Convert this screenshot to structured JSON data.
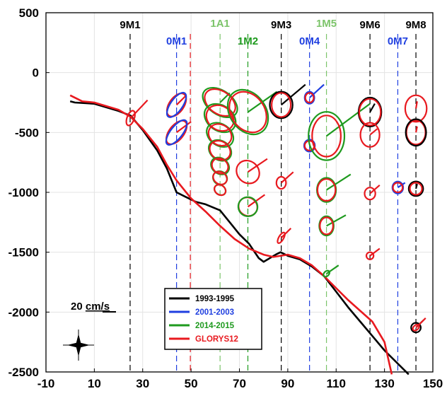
{
  "chart_data": {
    "type": "line",
    "title": "",
    "xlabel": "",
    "ylabel": "",
    "xlim": [
      -10,
      150
    ],
    "ylim": [
      -2500,
      500
    ],
    "xticks": [
      -10,
      10,
      30,
      50,
      70,
      90,
      110,
      130,
      150
    ],
    "yticks": [
      500,
      0,
      -500,
      -1000,
      -1500,
      -2000,
      -2500
    ],
    "grid": true,
    "legend": {
      "position": "bottom-center",
      "entries": [
        "1993-1995",
        "2001-2003",
        "2014-2015",
        "GLORYS12"
      ]
    },
    "colors": {
      "1993-1995": "#000000",
      "2001-2003": "#1f3fe0",
      "2014-2015": "#1e9a1e",
      "GLORYS12": "#e8191f",
      "1A1": "#7cc46a",
      "1M5": "#7cc46a",
      "1M2": "#1e9a1e",
      "dashed-red": "#e8191f"
    },
    "series": [
      {
        "name": "1993-1995",
        "x": [
          0,
          2,
          10,
          20,
          25,
          30,
          36,
          40,
          44,
          48,
          52,
          56,
          62,
          66,
          70,
          74,
          78,
          80,
          85,
          87,
          90,
          95,
          100,
          105,
          110,
          115,
          120,
          125,
          130,
          135,
          140
        ],
        "y": [
          -240,
          -250,
          -260,
          -320,
          -360,
          -480,
          -650,
          -800,
          -1000,
          -1040,
          -1080,
          -1100,
          -1150,
          -1250,
          -1350,
          -1430,
          -1550,
          -1580,
          -1520,
          -1500,
          -1530,
          -1560,
          -1620,
          -1700,
          -1830,
          -1960,
          -2080,
          -2200,
          -2320,
          -2420,
          -2520
        ]
      },
      {
        "name": "GLORYS12",
        "x": [
          0,
          5,
          10,
          20,
          25,
          30,
          36,
          40,
          44,
          50,
          56,
          62,
          68,
          74,
          80,
          84,
          90,
          95,
          100,
          105,
          110,
          115,
          120,
          125,
          130,
          133
        ],
        "y": [
          -190,
          -240,
          -250,
          -310,
          -370,
          -470,
          -620,
          -770,
          -900,
          -1050,
          -1160,
          -1280,
          -1390,
          -1470,
          -1520,
          -1540,
          -1520,
          -1550,
          -1610,
          -1700,
          -1800,
          -1900,
          -1990,
          -2080,
          -2250,
          -2520
        ]
      }
    ],
    "mooring_lines": [
      {
        "name": "9M1",
        "x": 24.8,
        "color": "#000000"
      },
      {
        "name": "0M1",
        "x": 44,
        "color": "#1f3fe0"
      },
      {
        "name": "",
        "x": 49.7,
        "color": "#e8191f"
      },
      {
        "name": "1A1",
        "x": 62,
        "color": "#7cc46a"
      },
      {
        "name": "1M2",
        "x": 73.5,
        "color": "#1e9a1e"
      },
      {
        "name": "9M3",
        "x": 87.3,
        "color": "#000000"
      },
      {
        "name": "0M4",
        "x": 99,
        "color": "#1f3fe0"
      },
      {
        "name": "1M5",
        "x": 106,
        "color": "#7cc46a"
      },
      {
        "name": "9M6",
        "x": 124,
        "color": "#000000"
      },
      {
        "name": "0M7",
        "x": 135.5,
        "color": "#1f3fe0"
      },
      {
        "name": "9M8",
        "x": 143,
        "color": "#000000"
      }
    ],
    "current_ellipses": [
      {
        "x": 44,
        "y": -270,
        "rx": 3,
        "ry": 110,
        "angle": 35,
        "color": "#e8191f",
        "stick": [
          4,
          80
        ]
      },
      {
        "x": 44,
        "y": -270,
        "rx": 2.5,
        "ry": 120,
        "angle": 35,
        "color": "#1f3fe0"
      },
      {
        "x": 44,
        "y": -500,
        "rx": 3,
        "ry": 115,
        "angle": 38,
        "color": "#e8191f",
        "stick": [
          6,
          90
        ]
      },
      {
        "x": 44,
        "y": -500,
        "rx": 2.5,
        "ry": 125,
        "angle": 38,
        "color": "#1f3fe0"
      },
      {
        "x": 25,
        "y": -380,
        "rx": 1.5,
        "ry": 65,
        "angle": 20,
        "color": "#e8191f",
        "stick": [
          7,
          150
        ]
      },
      {
        "x": 62,
        "y": -250,
        "rx": 8,
        "ry": 100,
        "angle": 35,
        "color": "#1e9a1e",
        "stick": [
          4,
          80
        ]
      },
      {
        "x": 62,
        "y": -250,
        "rx": 7,
        "ry": 95,
        "angle": 35,
        "color": "#e8191f"
      },
      {
        "x": 62,
        "y": -380,
        "rx": 7,
        "ry": 105,
        "angle": 35,
        "color": "#1e9a1e"
      },
      {
        "x": 62,
        "y": -380,
        "rx": 6,
        "ry": 100,
        "angle": 35,
        "color": "#e8191f"
      },
      {
        "x": 62,
        "y": -520,
        "rx": 6,
        "ry": 90,
        "angle": 35,
        "color": "#1e9a1e"
      },
      {
        "x": 62,
        "y": -520,
        "rx": 5,
        "ry": 85,
        "angle": 35,
        "color": "#e8191f"
      },
      {
        "x": 62,
        "y": -650,
        "rx": 5,
        "ry": 80,
        "angle": 35,
        "color": "#1e9a1e"
      },
      {
        "x": 62,
        "y": -650,
        "rx": 4.5,
        "ry": 75,
        "angle": 35,
        "color": "#e8191f"
      },
      {
        "x": 62,
        "y": -780,
        "rx": 4,
        "ry": 65,
        "angle": 35,
        "color": "#1e9a1e"
      },
      {
        "x": 62,
        "y": -780,
        "rx": 3.5,
        "ry": 60,
        "angle": 35,
        "color": "#e8191f"
      },
      {
        "x": 62,
        "y": -880,
        "rx": 3,
        "ry": 55,
        "angle": 35,
        "color": "#1e9a1e"
      },
      {
        "x": 62,
        "y": -880,
        "rx": 3,
        "ry": 50,
        "angle": 35,
        "color": "#e8191f"
      },
      {
        "x": 62,
        "y": -980,
        "rx": 2.5,
        "ry": 40,
        "angle": 35,
        "color": "#1e9a1e"
      },
      {
        "x": 62,
        "y": -980,
        "rx": 2.5,
        "ry": 40,
        "angle": 35,
        "color": "#e8191f"
      },
      {
        "x": 73.5,
        "y": -330,
        "rx": 10,
        "ry": 150,
        "angle": 55,
        "color": "#1e9a1e",
        "stick": [
          12,
          170
        ]
      },
      {
        "x": 73.5,
        "y": -330,
        "rx": 9,
        "ry": 140,
        "angle": 55,
        "color": "#e8191f"
      },
      {
        "x": 73.5,
        "y": -830,
        "rx": 5,
        "ry": 90,
        "angle": 45,
        "color": "#e8191f",
        "stick": [
          8,
          110
        ]
      },
      {
        "x": 73.5,
        "y": -1120,
        "rx": 4,
        "ry": 75,
        "angle": 40,
        "color": "#e8191f",
        "stick": [
          7,
          100
        ]
      },
      {
        "x": 73.5,
        "y": -1120,
        "rx": 4,
        "ry": 80,
        "angle": 40,
        "color": "#1e9a1e"
      },
      {
        "x": 87.3,
        "y": -270,
        "rx": 5.5,
        "ry": 95,
        "angle": 90,
        "color": "#000000",
        "stick": [
          10,
          170
        ]
      },
      {
        "x": 87.3,
        "y": -270,
        "rx": 5,
        "ry": 80,
        "angle": 90,
        "color": "#e8191f"
      },
      {
        "x": 87.3,
        "y": -920,
        "rx": 2.5,
        "ry": 40,
        "angle": 90,
        "color": "#e8191f",
        "stick": [
          5,
          90
        ]
      },
      {
        "x": 87.3,
        "y": -1380,
        "rx": 1,
        "ry": 50,
        "angle": 30,
        "color": "#e8191f",
        "stick": [
          4,
          80
        ]
      },
      {
        "x": 99,
        "y": -210,
        "rx": 2.5,
        "ry": 40,
        "angle": 90,
        "color": "#1f3fe0",
        "stick": [
          6,
          110
        ]
      },
      {
        "x": 99,
        "y": -210,
        "rx": 2,
        "ry": 35,
        "angle": 90,
        "color": "#e8191f"
      },
      {
        "x": 99,
        "y": -610,
        "rx": 2.5,
        "ry": 45,
        "angle": 90,
        "color": "#1f3fe0"
      },
      {
        "x": 99,
        "y": -610,
        "rx": 2,
        "ry": 40,
        "angle": 90,
        "color": "#e8191f"
      },
      {
        "x": 106,
        "y": -530,
        "rx": 10,
        "ry": 150,
        "angle": 90,
        "color": "#1e9a1e",
        "stick": [
          18,
          270
        ]
      },
      {
        "x": 106,
        "y": -530,
        "rx": 8.5,
        "ry": 120,
        "angle": 90,
        "color": "#e8191f"
      },
      {
        "x": 106,
        "y": -980,
        "rx": 5,
        "ry": 80,
        "angle": 90,
        "color": "#1e9a1e",
        "stick": [
          10,
          130
        ]
      },
      {
        "x": 106,
        "y": -980,
        "rx": 4.5,
        "ry": 75,
        "angle": 90,
        "color": "#e8191f"
      },
      {
        "x": 106,
        "y": -1280,
        "rx": 4,
        "ry": 60,
        "angle": 90,
        "color": "#1e9a1e",
        "stick": [
          8,
          90
        ]
      },
      {
        "x": 106,
        "y": -1280,
        "rx": 3.5,
        "ry": 55,
        "angle": 90,
        "color": "#e8191f"
      },
      {
        "x": 106,
        "y": -1680,
        "rx": 1,
        "ry": 30,
        "angle": 45,
        "color": "#1e9a1e",
        "stick": [
          5,
          70
        ]
      },
      {
        "x": 124,
        "y": -330,
        "rx": 6,
        "ry": 95,
        "angle": 90,
        "color": "#000000",
        "stick": [
          2,
          70
        ]
      },
      {
        "x": 124,
        "y": -330,
        "rx": 5.5,
        "ry": 90,
        "angle": 90,
        "color": "#e8191f"
      },
      {
        "x": 124,
        "y": -520,
        "rx": 5,
        "ry": 80,
        "angle": 90,
        "color": "#e8191f",
        "stick": [
          3,
          50
        ]
      },
      {
        "x": 124,
        "y": -1010,
        "rx": 2.5,
        "ry": 45,
        "angle": 90,
        "color": "#e8191f",
        "stick": [
          4,
          70
        ]
      },
      {
        "x": 124,
        "y": -1530,
        "rx": 1.5,
        "ry": 30,
        "angle": 60,
        "color": "#e8191f",
        "stick": [
          4,
          60
        ]
      },
      {
        "x": 135.5,
        "y": -960,
        "rx": 2.5,
        "ry": 45,
        "angle": 90,
        "color": "#1f3fe0",
        "stick": [
          3,
          40
        ]
      },
      {
        "x": 135.5,
        "y": -960,
        "rx": 2,
        "ry": 40,
        "angle": 90,
        "color": "#e8191f"
      },
      {
        "x": 143,
        "y": -300,
        "rx": 5.5,
        "ry": 90,
        "angle": 90,
        "color": "#e8191f",
        "stick": [
          0.5,
          60
        ]
      },
      {
        "x": 143,
        "y": -500,
        "rx": 5,
        "ry": 80,
        "angle": 90,
        "color": "#e8191f",
        "stick": [
          0.5,
          50
        ]
      },
      {
        "x": 143,
        "y": -500,
        "rx": 5.5,
        "ry": 85,
        "angle": 90,
        "color": "#000000"
      },
      {
        "x": 143,
        "y": -970,
        "rx": 3,
        "ry": 60,
        "angle": 90,
        "color": "#000000",
        "stick": [
          0.5,
          40
        ]
      },
      {
        "x": 143,
        "y": -970,
        "rx": 2.5,
        "ry": 50,
        "angle": 90,
        "color": "#e8191f"
      },
      {
        "x": 143,
        "y": -2130,
        "rx": 2,
        "ry": 40,
        "angle": 90,
        "color": "#000000",
        "stick": [
          3,
          60
        ]
      },
      {
        "x": 143,
        "y": -2130,
        "rx": 1,
        "ry": 30,
        "angle": 50,
        "color": "#e8191f",
        "stick": [
          4,
          80
        ]
      }
    ],
    "scale": {
      "label_prefix": "20 ",
      "label_underlined": "cm/s",
      "value": 20
    }
  }
}
